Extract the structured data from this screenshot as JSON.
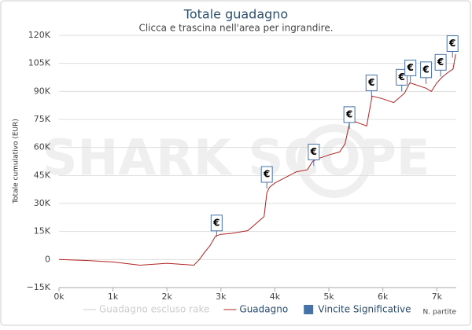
{
  "chart_data": {
    "type": "line",
    "title": "Totale guadagno",
    "subtitle": "Clicca e trascina nell'area per ingrandire.",
    "watermark": "SHARK SCOPE",
    "y_label": "Totale cumulativo (EUR)",
    "x_label": "N. partite",
    "grid": true,
    "xlim": [
      0,
      7360
    ],
    "ylim": [
      -15000,
      120000
    ],
    "xticks": [
      {
        "value": 0,
        "label": "0k"
      },
      {
        "value": 1000,
        "label": "1k"
      },
      {
        "value": 2000,
        "label": "2k"
      },
      {
        "value": 3000,
        "label": "3k"
      },
      {
        "value": 4000,
        "label": "4k"
      },
      {
        "value": 5000,
        "label": "5k"
      },
      {
        "value": 6000,
        "label": "6k"
      },
      {
        "value": 7000,
        "label": "7k"
      }
    ],
    "yticks": [
      {
        "value": -15000,
        "label": "−15K"
      },
      0,
      {
        "value": 15000,
        "label": "15K"
      },
      {
        "value": 30000,
        "label": "30K"
      },
      {
        "value": 45000,
        "label": "45K"
      },
      {
        "value": 60000,
        "label": "60K"
      },
      {
        "value": 75000,
        "label": "75K"
      },
      {
        "value": 90000,
        "label": "90K"
      },
      {
        "value": 105000,
        "label": "105K"
      },
      {
        "value": 120000,
        "label": "120K"
      }
    ],
    "x": [
      0,
      500,
      1000,
      1500,
      2000,
      2500,
      2600,
      2700,
      2800,
      2900,
      3000,
      3200,
      3500,
      3800,
      3850,
      3900,
      4000,
      4200,
      4400,
      4600,
      4700,
      4800,
      5000,
      5200,
      5300,
      5400,
      5500,
      5700,
      5800,
      6000,
      6200,
      6400,
      6500,
      6800,
      6900,
      7000,
      7100,
      7200,
      7300,
      7350
    ],
    "series": [
      {
        "name": "Guadagno escluso rake",
        "color": "#cccccc",
        "visible": false
      },
      {
        "name": "Guadagno",
        "color": "#b22222",
        "visible": true,
        "values": [
          0,
          -500,
          -1300,
          -3000,
          -2000,
          -3000,
          0,
          4000,
          7500,
          12600,
          13500,
          14000,
          15500,
          23000,
          35700,
          38700,
          41000,
          44000,
          47000,
          48000,
          52600,
          54000,
          56000,
          57600,
          62000,
          75700,
          73600,
          71500,
          87500,
          86000,
          84000,
          89000,
          94600,
          91700,
          90000,
          94600,
          97700,
          100000,
          102000,
          110000
        ]
      },
      {
        "name": "Vincite Significative",
        "color": "#4572a7",
        "visible": true,
        "marker_label": "€",
        "x": [
          2920,
          3850,
          4720,
          5380,
          5790,
          6350,
          6510,
          6800,
          7070,
          7290
        ],
        "values": [
          12000,
          38000,
          50000,
          70000,
          87000,
          90000,
          95000,
          94000,
          98000,
          108000
        ]
      }
    ]
  }
}
